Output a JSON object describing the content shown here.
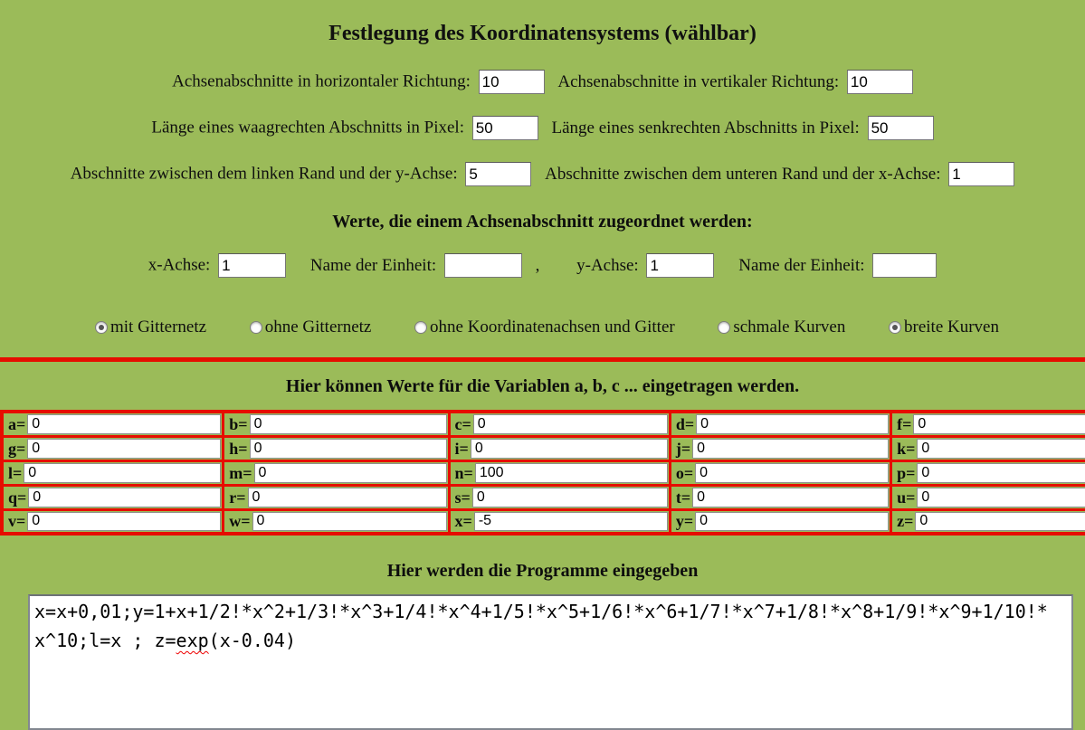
{
  "title": "Festlegung des Koordinatensystems (wählbar)",
  "settings": {
    "fields": [
      {
        "label": "Achsenabschnitte in horizontaler Richtung:",
        "value": "10"
      },
      {
        "label": "Achsenabschnitte in vertikaler Richtung:",
        "value": "10"
      },
      {
        "label": "Länge eines waagrechten Abschnitts in Pixel:",
        "value": "50"
      },
      {
        "label": "Länge eines senkrechten Abschnitts in Pixel:",
        "value": "50"
      },
      {
        "label": "Abschnitte zwischen dem linken Rand und der y-Achse:",
        "value": "5"
      },
      {
        "label": "Abschnitte zwischen dem unteren Rand und der x-Achse:",
        "value": "1"
      }
    ]
  },
  "axis_section": {
    "header": "Werte, die einem Achsenabschnitt zugeordnet werden:",
    "x_label": "x-Achse:",
    "x_value": "1",
    "x_unit_label": "Name der Einheit:",
    "x_unit_value": "",
    "separator": ",",
    "y_label": "y-Achse:",
    "y_value": "1",
    "y_unit_label": "Name der Einheit:",
    "y_unit_value": ""
  },
  "display_options": [
    {
      "id": "mit-gitternetz",
      "label": "mit Gitternetz",
      "selected": true
    },
    {
      "id": "ohne-gitternetz",
      "label": "ohne Gitternetz",
      "selected": false
    },
    {
      "id": "ohne-koordinatenachsen-und-gitter",
      "label": "ohne Koordinatenachsen und Gitter",
      "selected": false
    },
    {
      "id": "schmale-kurven",
      "label": "schmale Kurven",
      "selected": false
    },
    {
      "id": "breite-kurven",
      "label": "breite Kurven",
      "selected": true
    }
  ],
  "variables": {
    "header": "Hier können Werte für die Variablen a, b, c ... eingetragen werden.",
    "cells": [
      [
        {
          "name": "a",
          "label": "a=",
          "value": "0"
        },
        {
          "name": "b",
          "label": "b=",
          "value": "0"
        },
        {
          "name": "c",
          "label": "c=",
          "value": "0"
        },
        {
          "name": "d",
          "label": "d=",
          "value": "0"
        },
        {
          "name": "f",
          "label": "f=",
          "value": "0"
        }
      ],
      [
        {
          "name": "g",
          "label": "g=",
          "value": "0"
        },
        {
          "name": "h",
          "label": "h=",
          "value": "0"
        },
        {
          "name": "i",
          "label": "i=",
          "value": "0"
        },
        {
          "name": "j",
          "label": "j=",
          "value": "0"
        },
        {
          "name": "k",
          "label": "k=",
          "value": "0"
        }
      ],
      [
        {
          "name": "l",
          "label": "l=",
          "value": "0"
        },
        {
          "name": "m",
          "label": "m=",
          "value": "0"
        },
        {
          "name": "n",
          "label": "n=",
          "value": "100"
        },
        {
          "name": "o",
          "label": "o=",
          "value": "0"
        },
        {
          "name": "p",
          "label": "p=",
          "value": "0"
        }
      ],
      [
        {
          "name": "q",
          "label": "q=",
          "value": "0"
        },
        {
          "name": "r",
          "label": "r=",
          "value": "0"
        },
        {
          "name": "s",
          "label": "s=",
          "value": "0"
        },
        {
          "name": "t",
          "label": "t=",
          "value": "0"
        },
        {
          "name": "u",
          "label": "u=",
          "value": "0"
        }
      ],
      [
        {
          "name": "v",
          "label": "v=",
          "value": "0"
        },
        {
          "name": "w",
          "label": "w=",
          "value": "0"
        },
        {
          "name": "x",
          "label": "x=",
          "value": "-5"
        },
        {
          "name": "y",
          "label": "y=",
          "value": "0"
        },
        {
          "name": "z",
          "label": "z=",
          "value": "0"
        }
      ]
    ]
  },
  "program": {
    "header": "Hier werden die Programme eingegeben",
    "text_before": "x=x+0,01;y=1+x+1/2!*x^2+1/3!*x^3+1/4!*x^4+1/5!*x^5+1/6!*x^6+1/7!*x^7+1/8!*x^8+1/9!*x^9+1/10!*x^10;l=x ; z=",
    "misspelled_word": "exp",
    "text_after": "(x-0.04)"
  },
  "colors": {
    "background_green": "#9bbb59",
    "accent_red": "#e60d00",
    "input_white": "#ffffff"
  }
}
